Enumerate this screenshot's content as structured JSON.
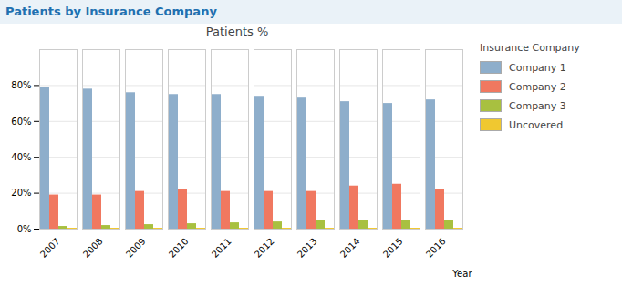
{
  "chart_data": {
    "type": "bar",
    "title": "Patients by Insurance Company",
    "subtitle": "Patients %",
    "x_label": "Year",
    "legend_title": "Insurance Company",
    "categories": [
      "2007",
      "2008",
      "2009",
      "2010",
      "2011",
      "2012",
      "2013",
      "2014",
      "2015",
      "2016"
    ],
    "series": [
      {
        "name": "Company 1",
        "color": "#8eaecb",
        "values": [
          79,
          78,
          76,
          75,
          75,
          74,
          73,
          71,
          70,
          72
        ]
      },
      {
        "name": "Company 2",
        "color": "#f07860",
        "values": [
          19,
          19,
          21,
          22,
          21,
          21,
          21,
          24,
          25,
          22
        ]
      },
      {
        "name": "Company 3",
        "color": "#a8c040",
        "values": [
          1.5,
          2,
          2.5,
          3,
          3.5,
          4,
          5,
          5,
          5,
          5
        ]
      },
      {
        "name": "Uncovered",
        "color": "#f0c830",
        "values": [
          0.5,
          0.5,
          0.5,
          0.5,
          0.5,
          0.5,
          0.5,
          0.5,
          0.5,
          0.5
        ]
      }
    ],
    "ylim": [
      0,
      100
    ],
    "yticks": [
      {
        "value": 0,
        "label": "0%"
      },
      {
        "value": 20,
        "label": "20%"
      },
      {
        "value": 40,
        "label": "40%"
      },
      {
        "value": 60,
        "label": "60%"
      },
      {
        "value": 80,
        "label": "80%"
      }
    ],
    "grid": true,
    "legend": "right"
  }
}
